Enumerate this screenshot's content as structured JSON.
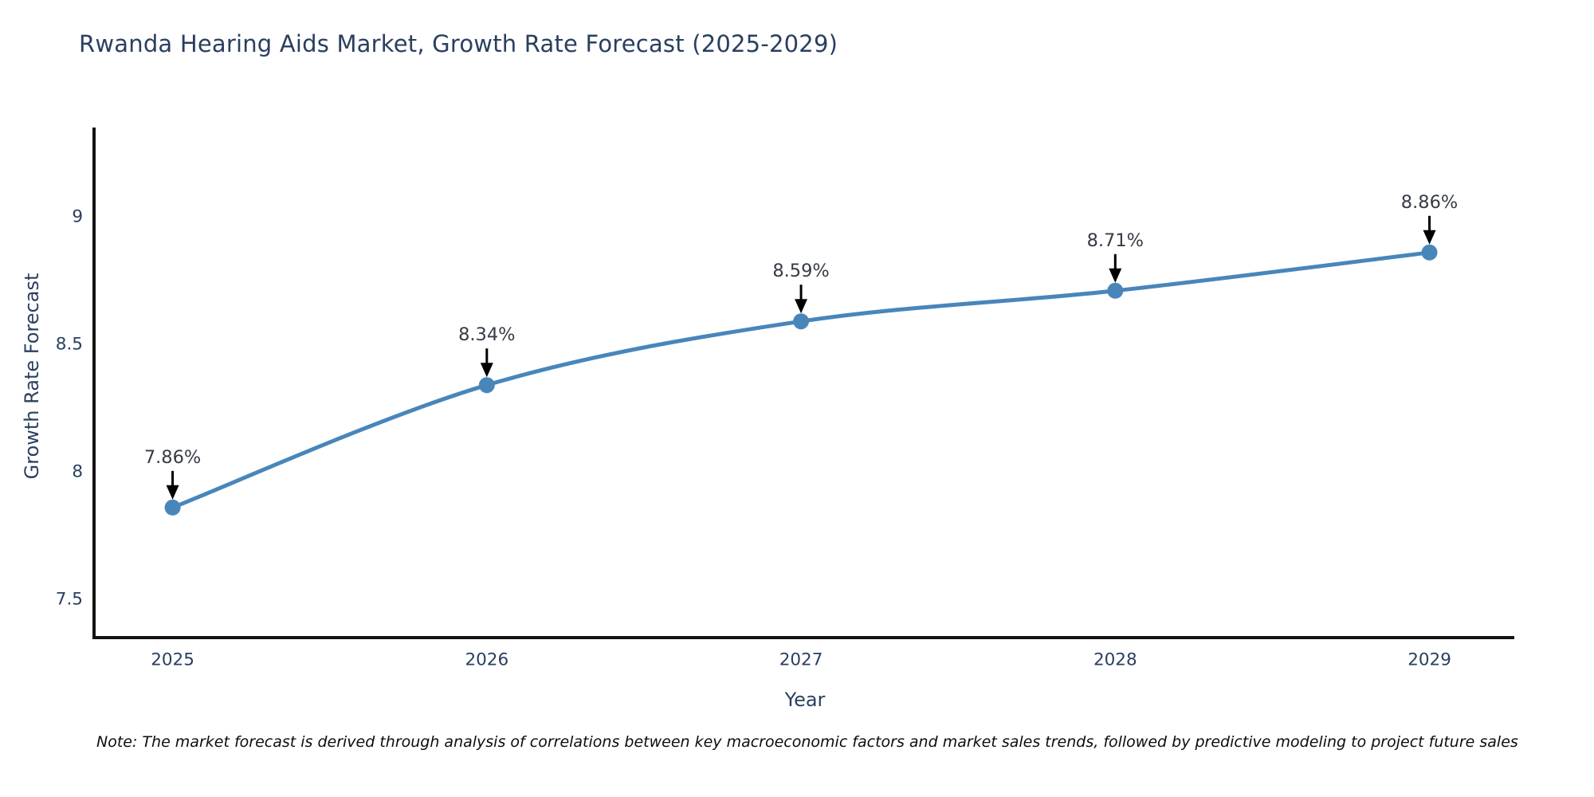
{
  "title": "Rwanda Hearing Aids Market, Growth Rate Forecast (2025-2029)",
  "note": "Note: The market forecast is derived through analysis of correlations between key macroeconomic factors and market sales trends, followed by predictive modeling to project future sales",
  "chart_data": {
    "type": "line",
    "title": "Rwanda Hearing Aids Market, Growth Rate Forecast (2025-2029)",
    "xlabel": "Year",
    "ylabel": "Growth Rate Forecast",
    "x": [
      2025,
      2026,
      2027,
      2028,
      2029
    ],
    "values": [
      7.86,
      8.34,
      8.59,
      8.71,
      8.86
    ],
    "annotations": [
      "7.86%",
      "8.34%",
      "8.59%",
      "8.71%",
      "8.86%"
    ],
    "xtick_labels": [
      "2025",
      "2026",
      "2027",
      "2028",
      "2029"
    ],
    "yticks": [
      7.5,
      8,
      8.5,
      9
    ],
    "ytick_labels": [
      "7.5",
      "8",
      "8.5",
      "9"
    ],
    "xlim": [
      2024.75,
      2029.27
    ],
    "ylim": [
      7.35,
      9.35
    ],
    "grid": false,
    "legend": "none",
    "line_color": "#4886ba",
    "marker_color": "#4886ba",
    "axis_color": "#131313",
    "tick_color": "#2a3f5f",
    "title_color": "#2a3f5f",
    "annotation_color": "#363c46",
    "arrow_color": "#000000"
  }
}
